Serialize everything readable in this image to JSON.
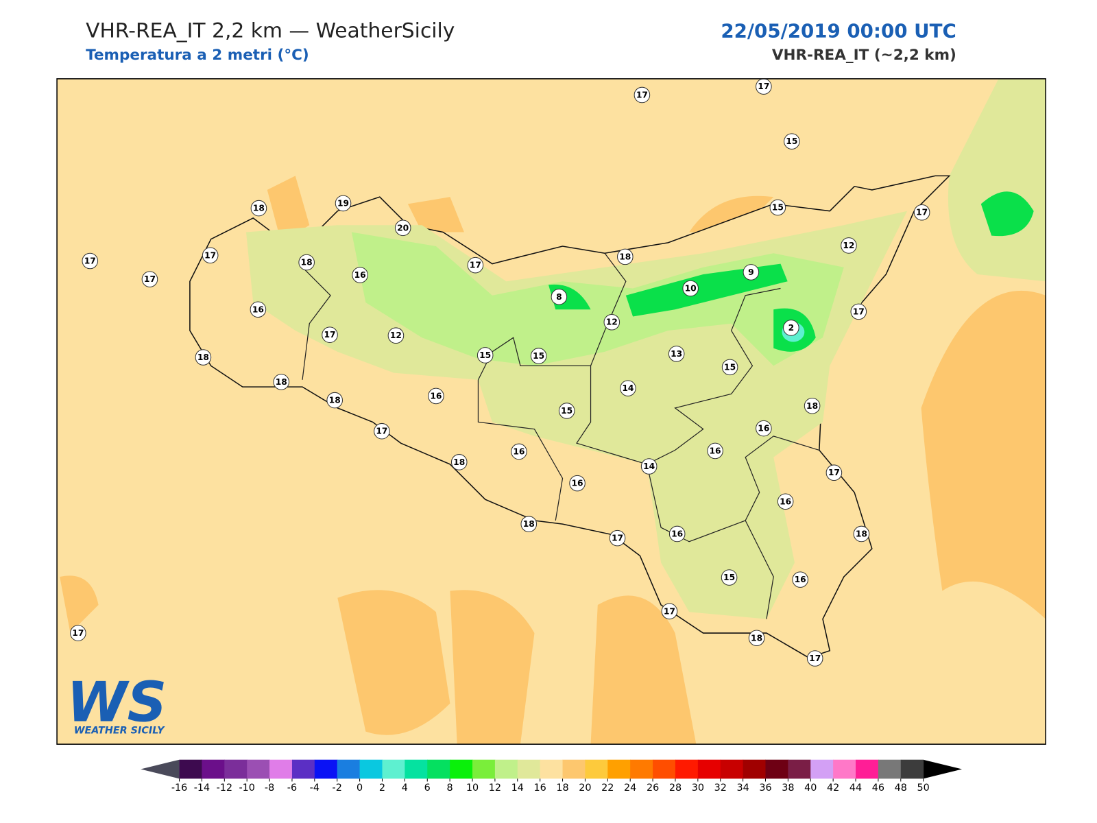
{
  "header": {
    "title": "VHR-REA_IT 2,2 km — WeatherSicily",
    "subtitle": "Temperatura a 2 metri (°C)",
    "date": "22/05/2019 00:00 UTC",
    "model": "VHR-REA_IT (~2,2 km)"
  },
  "map": {
    "stations": [
      17,
      17,
      15,
      18,
      19,
      20,
      17,
      17,
      17,
      18,
      16,
      17,
      18,
      15,
      17,
      12,
      9,
      10,
      8,
      12,
      2,
      17,
      16,
      17,
      12,
      18,
      15,
      15,
      13,
      15,
      18,
      18,
      16,
      14,
      15,
      18,
      17,
      16,
      16,
      16,
      18,
      14,
      16,
      17,
      16,
      18,
      17,
      16,
      18,
      15,
      16,
      17,
      18,
      17,
      17
    ]
  },
  "colorbar": {
    "ticks": [
      -16,
      -14,
      -12,
      -10,
      -8,
      -6,
      -4,
      -2,
      0,
      2,
      4,
      6,
      8,
      10,
      12,
      14,
      16,
      18,
      20,
      22,
      24,
      26,
      28,
      30,
      32,
      34,
      36,
      38,
      40,
      42,
      44,
      46,
      48,
      50
    ],
    "colors": [
      "#3d0a4f",
      "#6b0f8a",
      "#7b2e9a",
      "#9b4fb3",
      "#e07de8",
      "#5b2fc4",
      "#0a12f5",
      "#1a7ee0",
      "#0ac8e0",
      "#5ef0d0",
      "#05e2a0",
      "#05e060",
      "#0af00a",
      "#7aee3a",
      "#c0f08a",
      "#e0e89a",
      "#fde1a0",
      "#fdc76e",
      "#fdca3c",
      "#ffa000",
      "#ff7a00",
      "#ff4e00",
      "#ff1a00",
      "#e60000",
      "#c80000",
      "#a00000",
      "#6e0014",
      "#7a1e46",
      "#d3a0f5",
      "#ff78c8",
      "#ff1e96",
      "#787878",
      "#3c3c3c"
    ],
    "under_color": "#4a4a5a",
    "over_color": "#000000"
  },
  "logo": {
    "mark": "WS",
    "name": "WEATHER SICILY"
  }
}
